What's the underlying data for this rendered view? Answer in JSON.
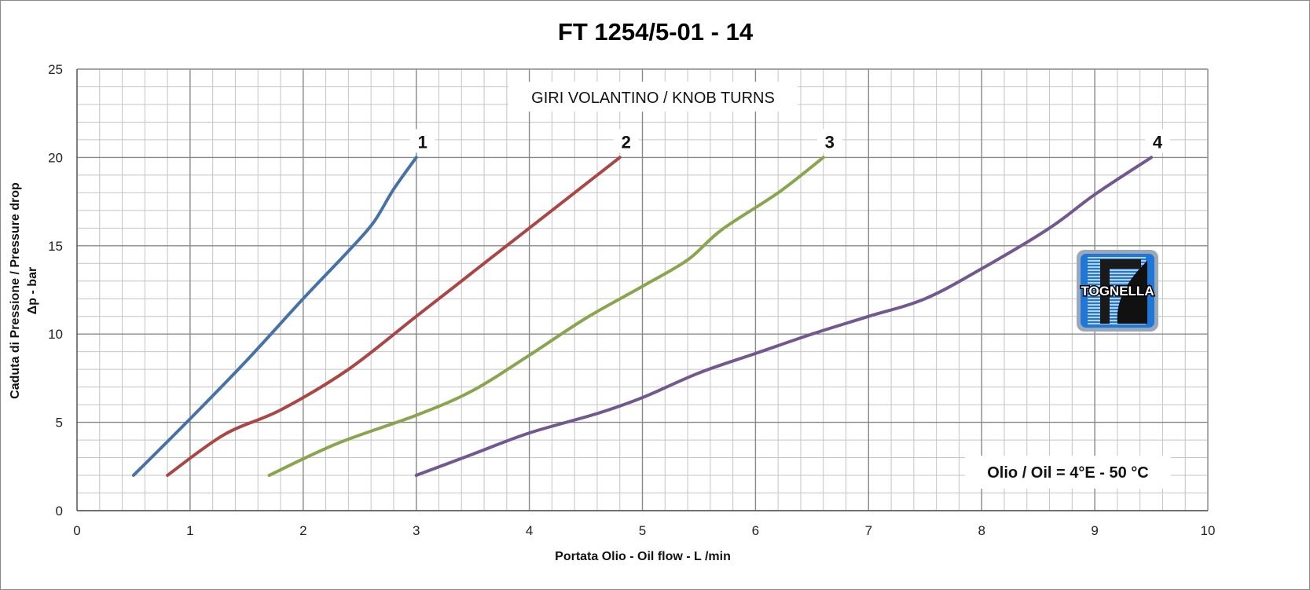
{
  "chart_data": {
    "type": "line",
    "title": "FT 1254/5-01 - 14",
    "xlabel": "Portata Olio - Oil flow -  L /min",
    "ylabel": [
      "Caduta di Pressione / Pressure drop",
      "Δp - bar"
    ],
    "xlim": [
      0,
      10
    ],
    "ylim": [
      0,
      25
    ],
    "x_ticks": [
      "0",
      "1",
      "2",
      "3",
      "4",
      "5",
      "6",
      "7",
      "8",
      "9",
      "10"
    ],
    "y_ticks": [
      "0",
      "5",
      "10",
      "15",
      "20",
      "25"
    ],
    "grid": true,
    "legend_title": "GIRI VOLANTINO / KNOB TURNS",
    "annotation": "Olio / Oil = 4°E - 50 °C",
    "series": [
      {
        "name": "1",
        "color": "#4672a8",
        "points": [
          [
            0.5,
            2
          ],
          [
            1.0,
            5.2
          ],
          [
            1.5,
            8.5
          ],
          [
            2.0,
            12
          ],
          [
            2.4,
            14.7
          ],
          [
            2.62,
            16.3
          ],
          [
            2.8,
            18.2
          ],
          [
            3.0,
            20
          ]
        ]
      },
      {
        "name": "2",
        "color": "#aa4643",
        "points": [
          [
            0.8,
            2
          ],
          [
            1.3,
            4.3
          ],
          [
            1.8,
            5.7
          ],
          [
            2.4,
            8
          ],
          [
            3.0,
            11
          ],
          [
            3.5,
            13.5
          ],
          [
            4.0,
            16
          ],
          [
            4.5,
            18.5
          ],
          [
            4.8,
            20
          ]
        ]
      },
      {
        "name": "3",
        "color": "#89a54e",
        "points": [
          [
            1.7,
            2
          ],
          [
            2.3,
            3.8
          ],
          [
            3.0,
            5.4
          ],
          [
            3.5,
            6.8
          ],
          [
            4.0,
            8.8
          ],
          [
            4.5,
            10.9
          ],
          [
            5.0,
            12.7
          ],
          [
            5.4,
            14.2
          ],
          [
            5.7,
            15.9
          ],
          [
            6.2,
            18
          ],
          [
            6.6,
            20
          ]
        ]
      },
      {
        "name": "4",
        "color": "#71588f",
        "points": [
          [
            3.0,
            2
          ],
          [
            3.5,
            3.2
          ],
          [
            4.0,
            4.4
          ],
          [
            4.6,
            5.5
          ],
          [
            5.0,
            6.4
          ],
          [
            5.5,
            7.8
          ],
          [
            6.0,
            8.9
          ],
          [
            6.5,
            10
          ],
          [
            7.0,
            11
          ],
          [
            7.5,
            12
          ],
          [
            8.0,
            13.7
          ],
          [
            8.6,
            16
          ],
          [
            9.0,
            17.9
          ],
          [
            9.5,
            20
          ]
        ]
      }
    ]
  },
  "logo": {
    "text": "TOGNELLA"
  }
}
